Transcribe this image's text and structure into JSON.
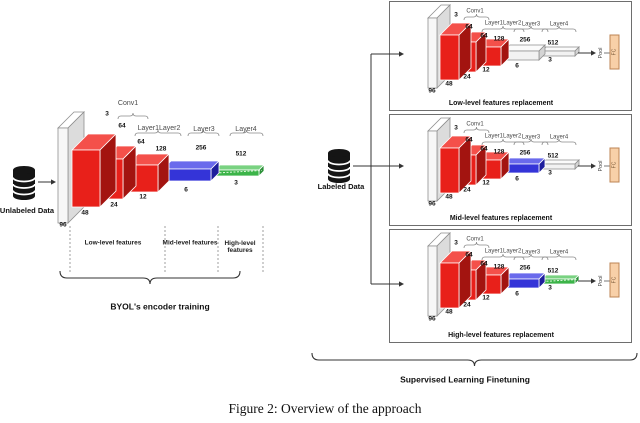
{
  "figure": {
    "caption": "Figure 2: Overview of the approach"
  },
  "net": {
    "conv1": "Conv1",
    "layer12": "Layer1Layer2",
    "layer3": "Layer3",
    "layer4": "Layer4",
    "n3": "3",
    "n64": "64",
    "n128": "128",
    "n256": "256",
    "n512": "512",
    "n96": "96",
    "n48": "48",
    "n24": "24",
    "n12": "12",
    "n6": "6"
  },
  "left": {
    "data_label": "Unlabeled Data",
    "brace_label": "BYOL's encoder training",
    "regions": {
      "low": "Low-level features",
      "mid": "Mid-level features",
      "high": "High-level features"
    }
  },
  "right": {
    "data_label": "Labeled Data",
    "brace_label": "Supervised Learning Finetuning",
    "pool_label": "Pool",
    "fc_label": "FC",
    "panels": {
      "low": {
        "title": "Low-level features replacement"
      },
      "mid": {
        "title": "Mid-level features replacement"
      },
      "high": {
        "title": "High-level features replacement"
      }
    }
  },
  "icons": {
    "unlabeled_data": "database-icon",
    "labeled_data": "database-icon"
  },
  "colors": {
    "red": "#e8201a",
    "blue": "#3434d8",
    "green": "#3cb449",
    "white_block": "#f2f2f2",
    "fc_fill": "#f8d0a8",
    "line": "#333333"
  }
}
